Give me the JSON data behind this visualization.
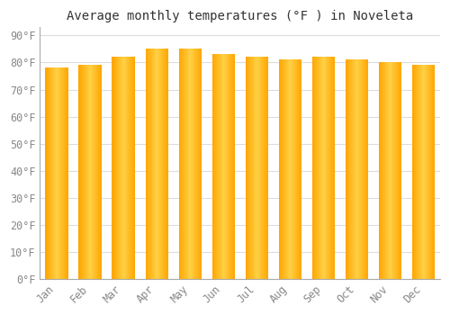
{
  "title": "Average monthly temperatures (°F ) in Noveleta",
  "months": [
    "Jan",
    "Feb",
    "Mar",
    "Apr",
    "May",
    "Jun",
    "Jul",
    "Aug",
    "Sep",
    "Oct",
    "Nov",
    "Dec"
  ],
  "values": [
    78,
    79,
    82,
    85,
    85,
    83,
    82,
    81,
    82,
    81,
    80,
    79
  ],
  "bar_color_center": "#FFD045",
  "bar_color_edge": "#FFA500",
  "background_color": "#FFFFFF",
  "plot_bg_color": "#FFFFFF",
  "grid_color": "#DDDDDD",
  "yticks": [
    0,
    10,
    20,
    30,
    40,
    50,
    60,
    70,
    80,
    90
  ],
  "ylim": [
    0,
    93
  ],
  "title_fontsize": 10,
  "tick_fontsize": 8.5,
  "tick_label_color": "#888888",
  "spine_color": "#AAAAAA"
}
